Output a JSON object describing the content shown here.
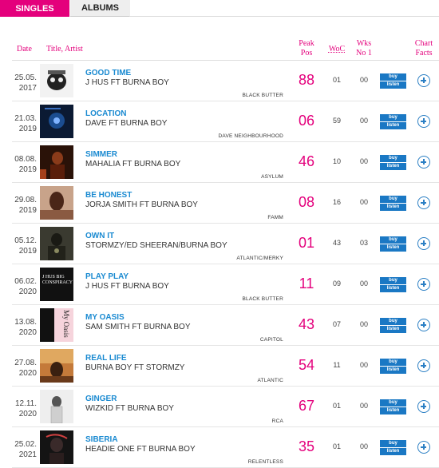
{
  "tabs": {
    "singles": "SINGLES",
    "albums": "ALBUMS"
  },
  "header": {
    "date": "Date",
    "title": "Title, Artist",
    "peak_line1": "Peak",
    "peak_line2": "Pos",
    "woc": "WoC",
    "wks_line1": "Wks",
    "wks_line2": "No 1",
    "facts_line1": "Chart",
    "facts_line2": "Facts"
  },
  "buttons": {
    "buy": "buy",
    "listen": "listen"
  },
  "colors": {
    "accent": "#e4007c",
    "link": "#1a8ad1",
    "button": "#1a78c4"
  },
  "rows": [
    {
      "date1": "25.05.",
      "date2": "2017",
      "title": "GOOD TIME",
      "artist": "J HUS FT BURNA BOY",
      "label": "BLACK BUTTER",
      "peak": "88",
      "woc": "01",
      "wks": "00"
    },
    {
      "date1": "21.03.",
      "date2": "2019",
      "title": "LOCATION",
      "artist": "DAVE FT BURNA BOY",
      "label": "DAVE NEIGHBOURHOOD",
      "peak": "06",
      "woc": "59",
      "wks": "00"
    },
    {
      "date1": "08.08.",
      "date2": "2019",
      "title": "SIMMER",
      "artist": "MAHALIA FT BURNA BOY",
      "label": "ASYLUM",
      "peak": "46",
      "woc": "10",
      "wks": "00"
    },
    {
      "date1": "29.08.",
      "date2": "2019",
      "title": "BE HONEST",
      "artist": "JORJA SMITH FT BURNA BOY",
      "label": "FAMM",
      "peak": "08",
      "woc": "16",
      "wks": "00"
    },
    {
      "date1": "05.12.",
      "date2": "2019",
      "title": "OWN IT",
      "artist": "STORMZY/ED SHEERAN/BURNA BOY",
      "label": "ATLANTIC/MERKY",
      "peak": "01",
      "woc": "43",
      "wks": "03"
    },
    {
      "date1": "06.02.",
      "date2": "2020",
      "title": "PLAY PLAY",
      "artist": "J HUS FT BURNA BOY",
      "label": "BLACK BUTTER",
      "peak": "11",
      "woc": "09",
      "wks": "00",
      "art_text": "J HUS BIG CONSPIRACY"
    },
    {
      "date1": "13.08.",
      "date2": "2020",
      "title": "MY OASIS",
      "artist": "SAM SMITH FT BURNA BOY",
      "label": "CAPITOL",
      "peak": "43",
      "woc": "07",
      "wks": "00",
      "art_text": "My Oasis"
    },
    {
      "date1": "27.08.",
      "date2": "2020",
      "title": "REAL LIFE",
      "artist": "BURNA BOY FT STORMZY",
      "label": "ATLANTIC",
      "peak": "54",
      "woc": "11",
      "wks": "00"
    },
    {
      "date1": "12.11.",
      "date2": "2020",
      "title": "GINGER",
      "artist": "WIZKID FT BURNA BOY",
      "label": "RCA",
      "peak": "67",
      "woc": "01",
      "wks": "00"
    },
    {
      "date1": "25.02.",
      "date2": "2021",
      "title": "SIBERIA",
      "artist": "HEADIE ONE FT BURNA BOY",
      "label": "RELENTLESS",
      "peak": "35",
      "woc": "01",
      "wks": "00"
    }
  ]
}
